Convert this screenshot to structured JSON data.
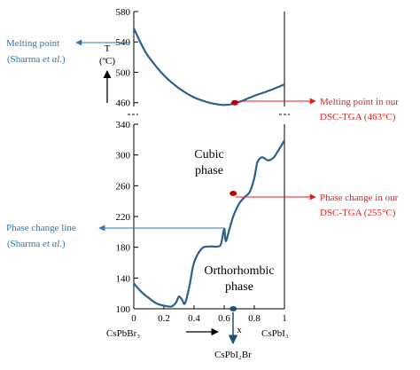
{
  "colors": {
    "curve": "#2E5E8E",
    "annotation_blue": "#2E75B6",
    "annotation_red": "#E02020",
    "marker_red": "#C00000",
    "marker_blue": "#1F4E79",
    "text": "#000000"
  },
  "chart_data": [
    {
      "type": "line",
      "panel": "upper",
      "ylim": [
        455,
        580
      ],
      "xlim": [
        0,
        1
      ],
      "y_ticks": [
        "580",
        "540",
        "500",
        "460"
      ],
      "ylabel": "T",
      "ylabel_unit": "(ºC)",
      "series": [
        {
          "points": [
            [
              0.0,
              558
            ],
            [
              0.05,
              537
            ],
            [
              0.1,
              520
            ],
            [
              0.2,
              496
            ],
            [
              0.3,
              479
            ],
            [
              0.4,
              467
            ],
            [
              0.5,
              460
            ],
            [
              0.55,
              458
            ],
            [
              0.6,
              457
            ],
            [
              0.65,
              458
            ],
            [
              0.7,
              461
            ],
            [
              0.8,
              469
            ],
            [
              0.9,
              476
            ],
            [
              1.0,
              484
            ]
          ]
        }
      ],
      "markers": [
        {
          "x": 0.67,
          "y": 460,
          "color": "marker_red"
        }
      ]
    },
    {
      "type": "line",
      "panel": "lower",
      "ylim": [
        100,
        340
      ],
      "xlim": [
        0,
        1
      ],
      "y_ticks": [
        "340",
        "300",
        "260",
        "220",
        "180",
        "140",
        "100"
      ],
      "x_ticks": [
        "0",
        "0.2",
        "0.4",
        "0.6",
        "0.8",
        "1"
      ],
      "xlabel": "x",
      "series": [
        {
          "points": [
            [
              0.0,
              133
            ],
            [
              0.05,
              122
            ],
            [
              0.1,
              114
            ],
            [
              0.15,
              107
            ],
            [
              0.2,
              104
            ],
            [
              0.25,
              103
            ],
            [
              0.28,
              108
            ],
            [
              0.3,
              116
            ],
            [
              0.32,
              112
            ],
            [
              0.34,
              107
            ],
            [
              0.37,
              130
            ],
            [
              0.4,
              160
            ],
            [
              0.45,
              178
            ],
            [
              0.5,
              181
            ],
            [
              0.56,
              181
            ],
            [
              0.58,
              185
            ],
            [
              0.6,
              204
            ],
            [
              0.61,
              188
            ],
            [
              0.63,
              200
            ],
            [
              0.66,
              220
            ],
            [
              0.7,
              237
            ],
            [
              0.74,
              246
            ],
            [
              0.77,
              252
            ],
            [
              0.8,
              270
            ],
            [
              0.82,
              290
            ],
            [
              0.85,
              297
            ],
            [
              0.88,
              294
            ],
            [
              0.9,
              293
            ],
            [
              0.93,
              297
            ],
            [
              0.96,
              306
            ],
            [
              1.0,
              319
            ]
          ]
        }
      ],
      "markers": [
        {
          "x": 0.66,
          "y": 250,
          "color": "marker_red"
        },
        {
          "x": 0.66,
          "y": 100,
          "color": "marker_blue"
        }
      ]
    }
  ],
  "phase_labels": {
    "cubic_1": "Cubic",
    "cubic_2": "phase",
    "ortho_1": "Orthorhombic",
    "ortho_2": "phase"
  },
  "composition_labels": {
    "left": "CsPbBr₃",
    "right": "CsPbI₃",
    "bottom": "CsPbI₂Br"
  },
  "annotations": {
    "melting_ref_1": "Melting point",
    "melting_ref_2a": "(Sharma ",
    "melting_ref_2b": "et al.",
    "melting_ref_2c": ")",
    "melting_ours_1": "Melting point in our",
    "melting_ours_2": "DSC-TGA (463°C)",
    "phase_change_ours_1": "Phase change in our",
    "phase_change_ours_2": "DSC-TGA (255°C)",
    "phase_line_1": "Phase change line",
    "phase_line_2a": "(Sharma ",
    "phase_line_2b": "et al.",
    "phase_line_2c": ")"
  }
}
